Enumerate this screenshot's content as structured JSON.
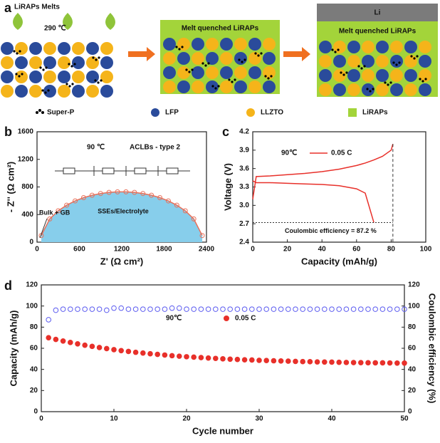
{
  "schematic": {
    "panel_label": "a",
    "melt_label": "LiRAPs Melts",
    "temperature": "290 ℃",
    "middle_label": "Melt quenched LiRAPs",
    "right_label": "Melt quenched LiRAPs",
    "li_label": "Li",
    "legend": [
      "Super-P",
      "LFP",
      "LLZTO",
      "LiRAPs"
    ]
  },
  "chart_data": [
    {
      "type": "scatter",
      "panel_label": "b",
      "x_label": "Z' (Ω cm²)",
      "y_label": "- Z'' (Ω cm²)",
      "annotations": [
        "90 ℃",
        "ACLBs - type 2",
        "Bulk + GB",
        "SSEs/Electrolyte"
      ],
      "x": [
        60,
        180,
        300,
        420,
        540,
        660,
        780,
        900,
        1020,
        1140,
        1260,
        1380,
        1500,
        1620,
        1740,
        1860,
        1980,
        2100,
        2220,
        2340
      ],
      "values": [
        96,
        337,
        454,
        536,
        598,
        645,
        680,
        705,
        721,
        729,
        729,
        721,
        705,
        680,
        645,
        598,
        536,
        454,
        337,
        96
      ],
      "color": "#e8705a",
      "fill_color": "#87ceeb",
      "xlim": [
        0,
        2400
      ],
      "xticks": [
        0,
        600,
        1200,
        1800,
        2400
      ],
      "ylim": [
        0,
        1600
      ],
      "yticks": [
        0,
        400,
        800,
        1200,
        1600
      ]
    },
    {
      "type": "line",
      "panel_label": "c",
      "x_label": "Capacity (mAh/g)",
      "y_label": "Voltage (V)",
      "annotations": [
        "90℃",
        "Coulombic efficiency = 87.2 %"
      ],
      "x": [
        0,
        2,
        10,
        20,
        30,
        40,
        50,
        60,
        65,
        70,
        75,
        80,
        81
      ],
      "series": [
        {
          "name": "0.05 C",
          "color": "#e8302a",
          "values": [
            3.1,
            3.47,
            3.48,
            3.5,
            3.52,
            3.55,
            3.59,
            3.65,
            3.69,
            3.74,
            3.8,
            3.9,
            4.0
          ]
        },
        {
          "color": "#e8302a",
          "values": [
            3.4,
            3.37,
            3.37,
            3.36,
            3.35,
            3.34,
            3.32,
            3.27,
            3.2,
            2.72,
            null,
            null,
            null
          ]
        }
      ],
      "xlim": [
        0,
        100
      ],
      "xticks": [
        0,
        20,
        40,
        60,
        80,
        100
      ],
      "ylim": [
        2.4,
        4.2
      ],
      "yticks": [
        2.4,
        2.7,
        {
          "value": 3,
          "label": "3.0"
        },
        3.3,
        3.6,
        3.9,
        4.2
      ]
    },
    {
      "type": "scatter",
      "panel_label": "d",
      "x_label": "Cycle number",
      "y_label": "Capacity (mAh/g)",
      "y2_label": "Coulombic efficiency (%)",
      "annotations": [
        "90℃"
      ],
      "x": [
        1,
        2,
        3,
        4,
        5,
        6,
        7,
        8,
        9,
        10,
        11,
        12,
        13,
        14,
        15,
        16,
        17,
        18,
        19,
        20,
        21,
        22,
        23,
        24,
        25,
        26,
        27,
        28,
        29,
        30,
        31,
        32,
        33,
        34,
        35,
        36,
        37,
        38,
        39,
        40,
        41,
        42,
        43,
        44,
        45,
        46,
        47,
        48,
        49,
        50
      ],
      "series": [
        {
          "name": "0.05 C",
          "color": "#e8302a",
          "values": [
            70,
            68.4,
            66.9,
            65.5,
            64.2,
            62.9,
            61.8,
            60.7,
            59.7,
            58.7,
            57.8,
            57,
            56.2,
            55.5,
            54.8,
            54.2,
            53.6,
            53,
            52.5,
            52,
            51.6,
            51.2,
            50.8,
            50.4,
            50,
            49.7,
            49.4,
            49.1,
            48.9,
            48.6,
            48.4,
            48.2,
            48,
            47.8,
            47.6,
            47.4,
            47.3,
            47.1,
            47,
            46.9,
            46.7,
            46.6,
            46.5,
            46.4,
            46.3,
            46.2,
            46.2,
            46.1,
            46,
            46
          ]
        },
        {
          "color": "#5b5bf0",
          "axis": "y2",
          "values": [
            87,
            96,
            97,
            97,
            97,
            97,
            97,
            97,
            96,
            98,
            98,
            97,
            97,
            97,
            97,
            97,
            97,
            98,
            98,
            97,
            97,
            97,
            97,
            97,
            97,
            97,
            97,
            97,
            97,
            97,
            97,
            97,
            97,
            97,
            97,
            97,
            97,
            97,
            97,
            97,
            97,
            97,
            97,
            97,
            97,
            97,
            97,
            97,
            97,
            97
          ]
        }
      ],
      "xlim": [
        0,
        50
      ],
      "xticks": [
        0,
        10,
        20,
        30,
        40,
        50
      ],
      "ylim": [
        0,
        120
      ],
      "yticks": [
        0,
        20,
        40,
        60,
        80,
        100,
        120
      ],
      "y2lim": [
        0,
        120
      ],
      "y2ticks": [
        0,
        20,
        40,
        60,
        80,
        100,
        120
      ]
    }
  ]
}
